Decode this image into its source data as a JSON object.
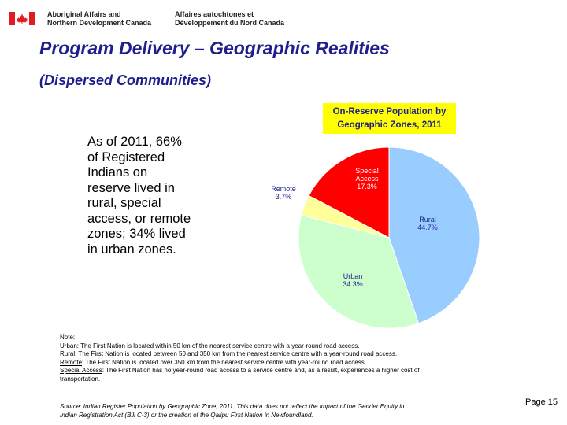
{
  "header": {
    "department_en": [
      "Aboriginal Affairs and",
      "Northern Development Canada"
    ],
    "department_fr": [
      "Affaires autochtones et",
      "Développement du Nord Canada"
    ],
    "colors": {
      "flag_red": "#e11b22"
    }
  },
  "slide": {
    "title": "Program Delivery – Geographic Realities",
    "subtitle": "(Dispersed Communities)",
    "title_color": "#1e1e8c",
    "body_lines": [
      "As of 2011, 66%",
      "of Registered",
      "Indians on",
      "reserve lived in",
      "rural, special",
      "access, or remote",
      "zones; 34% lived",
      "in urban zones."
    ],
    "page": "Page 15"
  },
  "chart_data": {
    "type": "pie",
    "title_lines": [
      "On-Reserve Population by",
      "Geographic Zones, 2011"
    ],
    "slices": [
      {
        "name": "Rural",
        "value": 44.7,
        "label": "44.7%",
        "color": "#99ccff"
      },
      {
        "name": "Urban",
        "value": 34.3,
        "label": "34.3%",
        "color": "#ccffcc"
      },
      {
        "name": "Remote",
        "value": 3.7,
        "label": "3.7%",
        "color": "#ffff99"
      },
      {
        "name": "Special Access",
        "value": 17.3,
        "label": "17.3%",
        "color": "#ff0000"
      }
    ]
  },
  "notes": {
    "heading": "Note:",
    "items": [
      {
        "term": "Urban",
        "text": ": The First Nation is located within 50 km of the nearest service centre with a year-round road access."
      },
      {
        "term": "Rural",
        "text": ": The First Nation is located between 50 and 350 km from the nearest service centre with a year-round road access."
      },
      {
        "term": "Remote",
        "text": ": The First Nation is located over 350 km from the nearest service centre with year-round road access."
      },
      {
        "term": "Special Access",
        "text": ": The First Nation has no year-round road access to a service centre and, as a result, experiences a higher cost of"
      }
    ],
    "continuation": "transportation.",
    "source_lines": [
      "Source: Indian Register Population by Geographic Zone, 2011. This data does not reflect the impact of the Gender Equity in",
      "Indian Registration Act (Bill C-3) or the creation of the Qalipu First Nation in Newfoundland."
    ]
  }
}
